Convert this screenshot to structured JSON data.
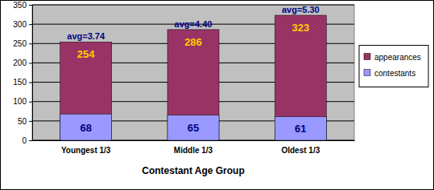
{
  "chart_data": {
    "type": "bar",
    "x_label": "Contestant Age Group",
    "categories": [
      "Youngest 1/3",
      "Middle 1/3",
      "Oldest 1/3"
    ],
    "series": [
      {
        "name": "appearances",
        "color": "#993366",
        "values": [
          254,
          286,
          323
        ]
      },
      {
        "name": "contestants",
        "color": "#9999ff",
        "values": [
          68,
          65,
          61
        ]
      }
    ],
    "annotations": [
      "avg=3.74",
      "avg=4.40",
      "avg=5.30"
    ],
    "ylim": [
      0,
      350
    ],
    "yticks": [
      0,
      50,
      100,
      150,
      200,
      250,
      300,
      350
    ],
    "grid": true,
    "legend": "right",
    "stacked": false,
    "data_labels": true
  }
}
